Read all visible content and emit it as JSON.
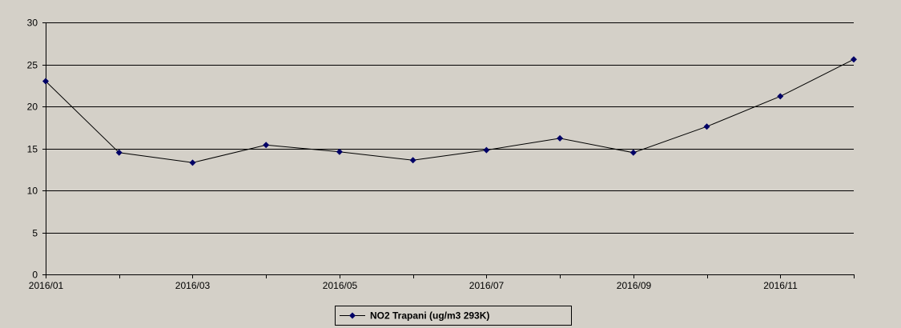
{
  "chart_data": {
    "type": "line",
    "title": "",
    "xlabel": "",
    "ylabel": "",
    "x": [
      "2016/01",
      "2016/02",
      "2016/03",
      "2016/04",
      "2016/05",
      "2016/06",
      "2016/07",
      "2016/08",
      "2016/09",
      "2016/10",
      "2016/11",
      "2016/12"
    ],
    "x_tick_labels": [
      "2016/01",
      "",
      "2016/03",
      "",
      "2016/05",
      "",
      "2016/07",
      "",
      "2016/09",
      "",
      "2016/11",
      ""
    ],
    "series": [
      {
        "name": "NO2 Trapani (ug/m3 293K)",
        "values": [
          23.0,
          14.5,
          13.3,
          15.4,
          14.6,
          13.6,
          14.8,
          16.2,
          14.5,
          17.6,
          21.2,
          25.6
        ],
        "color": "#000066",
        "line_color": "#000000"
      }
    ],
    "ylim": [
      0,
      30
    ],
    "yticks": [
      0,
      5,
      10,
      15,
      20,
      25,
      30
    ],
    "grid": "horizontal",
    "legend_position": "bottom-center",
    "plot_background": "#d4d0c8",
    "outer_background": "#ffffff"
  }
}
